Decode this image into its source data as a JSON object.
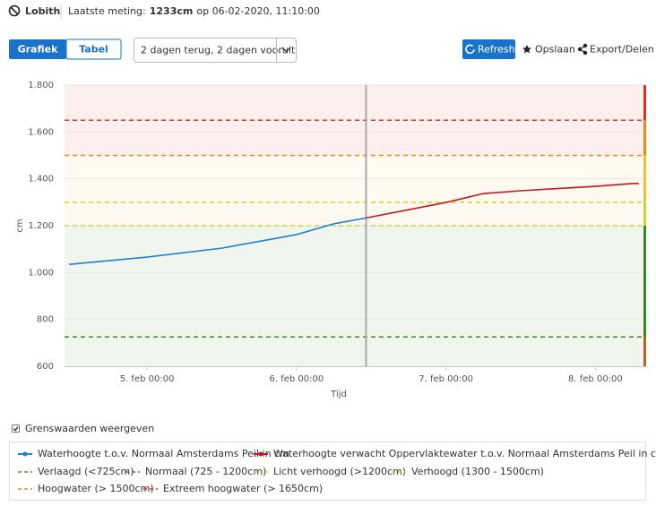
{
  "header": {
    "location": "Lobith",
    "last_label": "Laatste meting:",
    "last_value": "1233cm",
    "last_suffix": "op 06-02-2020, 11:10:00"
  },
  "controls": {
    "view_chart": "Grafiek",
    "view_table": "Tabel",
    "period": "2 dagen terug, 2 dagen vooruit",
    "refresh": "Refresh",
    "save": "Opslaan",
    "export": "Export/Delen",
    "show_thresholds": "Grenswaarden weergeven"
  },
  "chart_data": {
    "type": "line",
    "x_label": "Tijd",
    "y_label": "cm",
    "xlim": [
      "4. feb 10:45",
      "8. feb 08:00"
    ],
    "xticks": [
      "5. feb 00:00",
      "6. feb 00:00",
      "7. feb 00:00",
      "8. feb 00:00"
    ],
    "ylim": [
      600,
      1800
    ],
    "yticks": [
      600,
      800,
      {
        "value": 1000,
        "label": "1.000"
      },
      {
        "value": 1200,
        "label": "1.200"
      },
      {
        "value": 1400,
        "label": "1.400"
      },
      {
        "value": 1600,
        "label": "1.600"
      },
      {
        "value": 1800,
        "label": "1.800"
      }
    ],
    "current_time": "6. feb 11:10",
    "series": [
      {
        "name": "Waterhoogte t.o.v. Normaal Amsterdams Peil in cm",
        "color": "#1f7fd0",
        "x": [
          "4. feb 11:30",
          "5. feb 00:00",
          "5. feb 12:00",
          "6. feb 00:00",
          "6. feb 06:00",
          "6. feb 11:10"
        ],
        "values": [
          1035,
          1066,
          1104,
          1162,
          1208,
          1233
        ]
      },
      {
        "name": "Waterhoogte verwacht Oppervlaktewater t.o.v. Normaal Amsterdams Peil in cm",
        "color": "#c0181f",
        "x": [
          "6. feb 11:10",
          "7. feb 00:00",
          "7. feb 06:00",
          "7. feb 12:00",
          "8. feb 00:00",
          "8. feb 06:00",
          "8. feb 07:00"
        ],
        "values": [
          1233,
          1299,
          1337,
          1349,
          1368,
          1380,
          1380
        ]
      }
    ],
    "thresholds": [
      {
        "name": "Verlaagd (<725cm)",
        "color": "#b4622a"
      },
      {
        "name": "Normaal (725 - 1200cm)",
        "color": "#3a8a1c",
        "value": 725
      },
      {
        "name": "Licht verhoogd (>1200cm)",
        "color": "#c5d83a",
        "value": 1200
      },
      {
        "name": "Verhoogd (1300 - 1500cm)",
        "color": "#f2c12e",
        "value": 1300
      },
      {
        "name": "Hoogwater (> 1500cm)",
        "color": "#e8891a",
        "value": 1500
      },
      {
        "name": "Extreem hoogwater (> 1650cm)",
        "color": "#e0302a",
        "value": 1650
      }
    ]
  }
}
